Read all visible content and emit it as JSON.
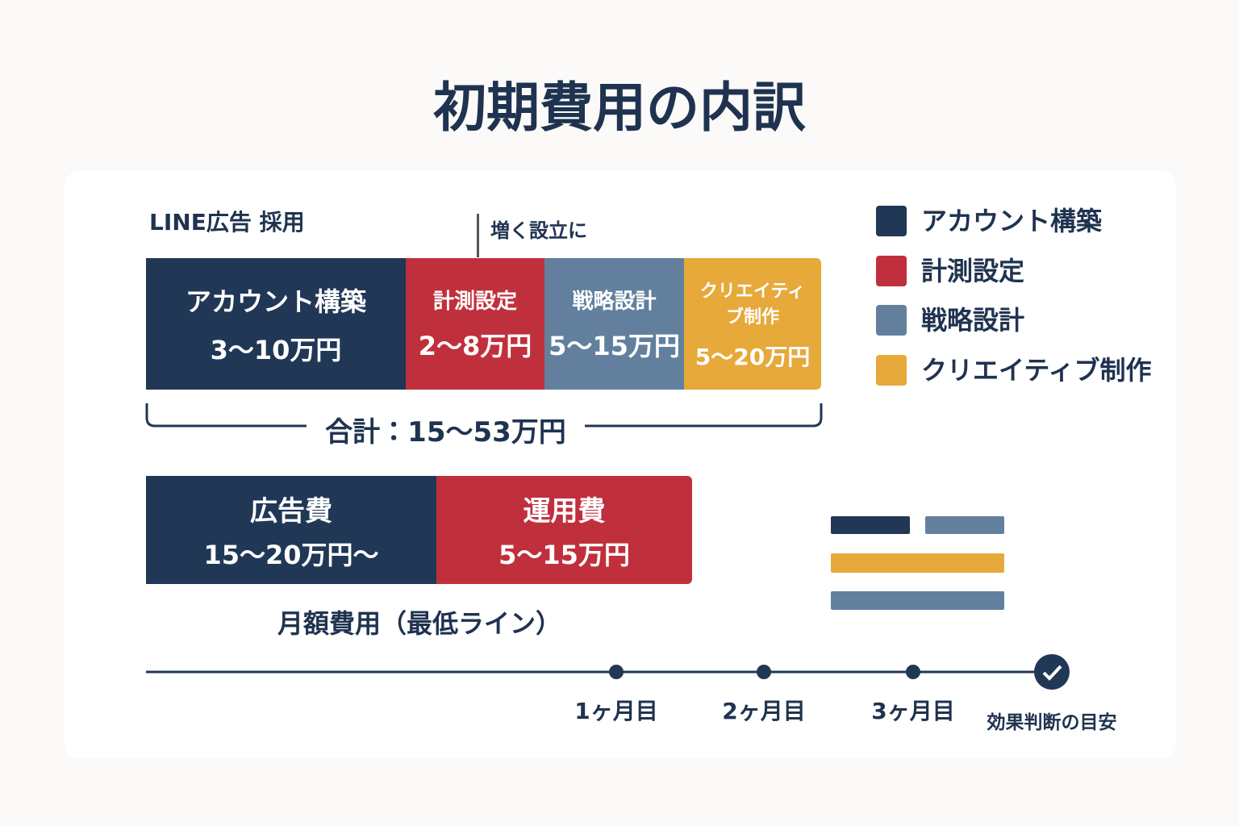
{
  "header": {
    "title": "初期費用の内訳"
  },
  "initial": {
    "label": "LINE広告 採用",
    "annotation": "増く設立に",
    "segments": [
      {
        "label": "アカウント構築",
        "amount": "3〜10万円"
      },
      {
        "label": "計測設定",
        "amount": "2〜8万円"
      },
      {
        "label": "戦略設計",
        "amount": "5〜15万円"
      },
      {
        "label": "クリエイティブ制作",
        "amount": "5〜20万円"
      }
    ],
    "total": "合計：15〜53万円"
  },
  "monthly": {
    "segments": [
      {
        "label": "広告費",
        "amount": "15〜20万円〜"
      },
      {
        "label": "運用費",
        "amount": "5〜15万円"
      }
    ],
    "caption": "月額費用（最低ライン）"
  },
  "legend": [
    "アカウント構築",
    "計測設定",
    "戦略設計",
    "クリエイティブ制作"
  ],
  "timeline": [
    "1ヶ月目",
    "2ヶ月目",
    "3ヶ月目",
    "効果判断の目安"
  ]
}
